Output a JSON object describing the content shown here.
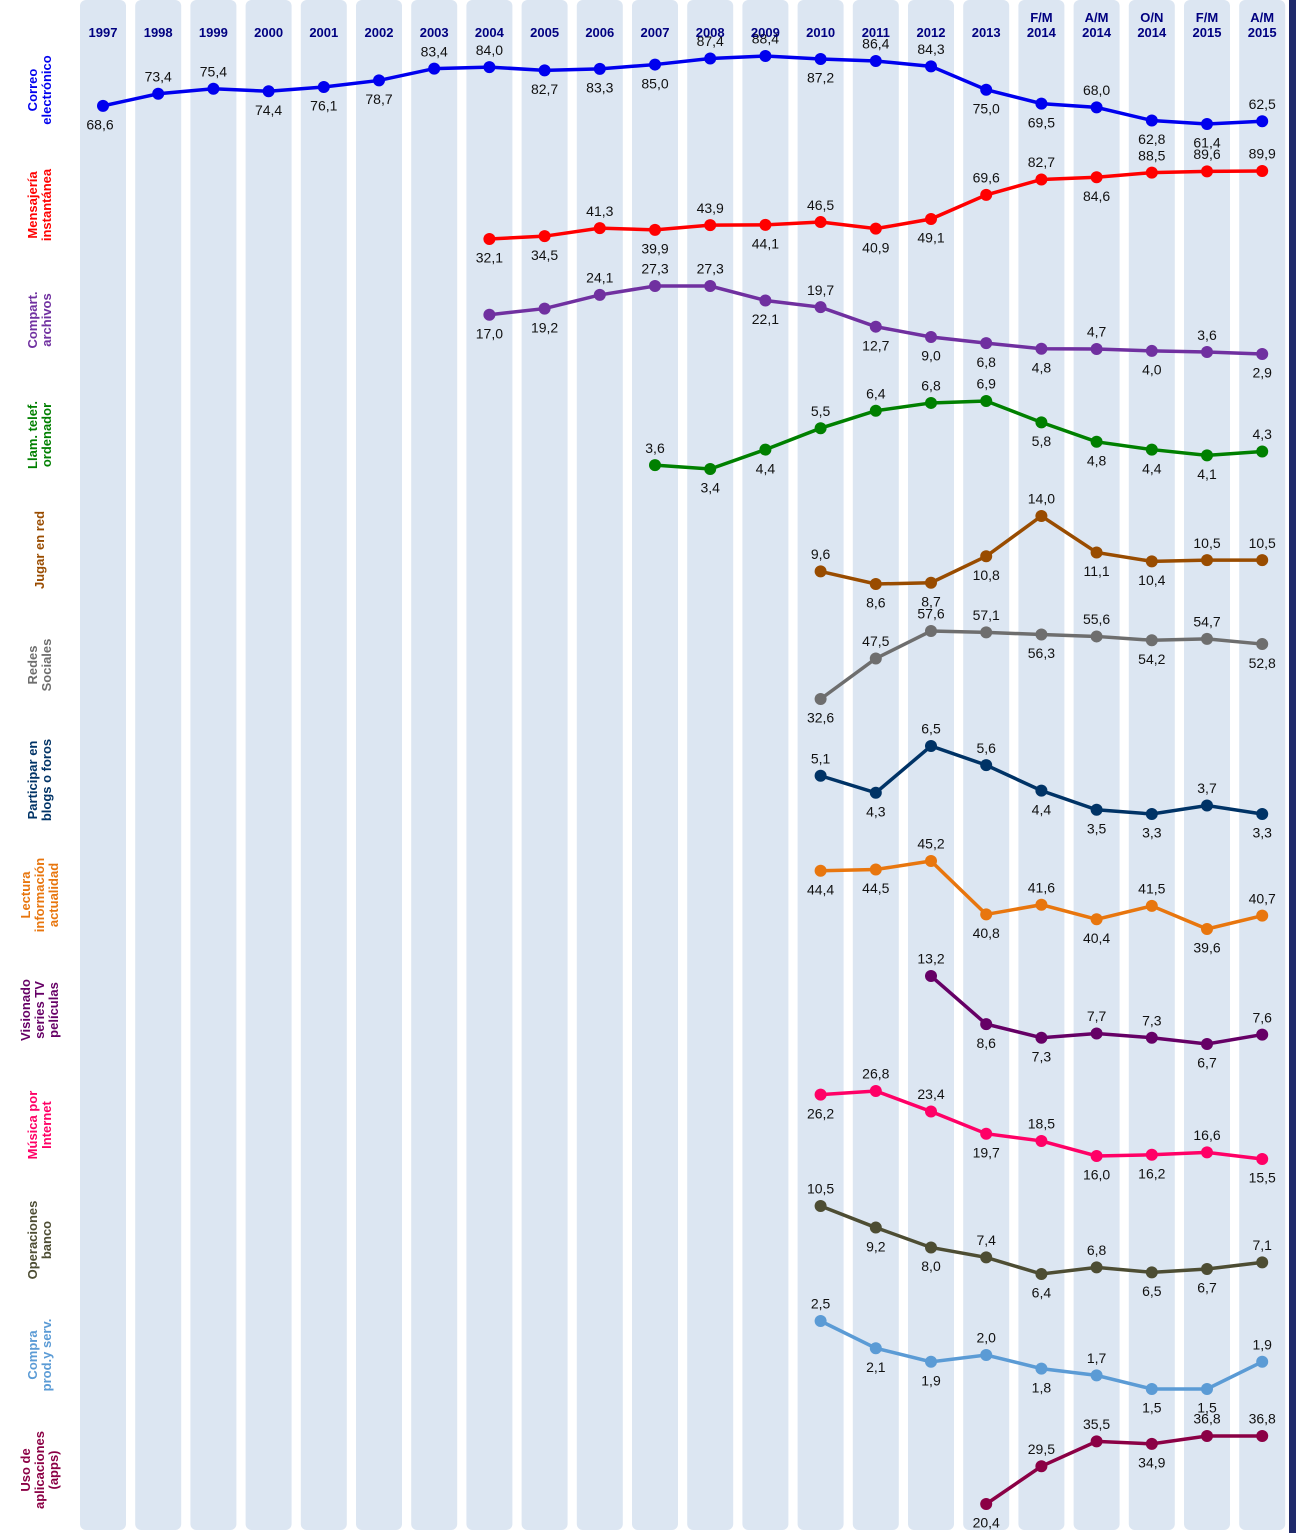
{
  "chart_data": {
    "type": "line",
    "categories": [
      "1997",
      "1998",
      "1999",
      "2000",
      "2001",
      "2002",
      "2003",
      "2004",
      "2005",
      "2006",
      "2007",
      "2008",
      "2009",
      "2010",
      "2011",
      "2012",
      "2013",
      "F/M 2014",
      "A/M 2014",
      "O/N 2014",
      "F/M 2015",
      "A/M 2015"
    ],
    "series": [
      {
        "name": "Correo electrónico",
        "color": "#0000ee",
        "values": [
          68.6,
          73.4,
          75.4,
          74.4,
          76.1,
          78.7,
          83.4,
          84.0,
          82.7,
          83.3,
          85.0,
          87.4,
          88.4,
          87.2,
          86.4,
          84.3,
          75.0,
          69.5,
          68.0,
          62.8,
          61.4,
          62.5
        ],
        "value_labels": [
          "68,6",
          "73,4",
          "75,4",
          "74,4",
          "76,1",
          "78,7",
          "83,4",
          "84,0",
          "82,7",
          "83,3",
          "85,0",
          "87,4",
          "88,4",
          "87,2",
          "86,4",
          "84,3",
          "75,0",
          "69,5",
          "68,0",
          "62,8",
          "61,4",
          "62,5"
        ]
      },
      {
        "name": "Mensajería instantánea",
        "color": "#ff0000",
        "values": [
          null,
          null,
          null,
          null,
          null,
          null,
          null,
          32.1,
          34.5,
          41.3,
          39.9,
          43.9,
          44.1,
          46.5,
          40.9,
          49.1,
          69.6,
          82.7,
          84.6,
          88.5,
          89.6,
          89.9
        ],
        "value_labels": [
          null,
          null,
          null,
          null,
          null,
          null,
          null,
          "32,1",
          "34,5",
          "41,3",
          "39,9",
          "43,9",
          "44,1",
          "46,5",
          "40,9",
          "49,1",
          "69,6",
          "82,7",
          "84,6",
          "88,5",
          "89,6",
          "89,9"
        ]
      },
      {
        "name": "Compart. archivos",
        "color": "#7030a0",
        "values": [
          null,
          null,
          null,
          null,
          null,
          null,
          null,
          17.0,
          19.2,
          24.1,
          27.3,
          27.3,
          22.1,
          19.7,
          12.7,
          9.0,
          6.8,
          4.8,
          4.7,
          4.0,
          3.6,
          2.9
        ],
        "value_labels": [
          null,
          null,
          null,
          null,
          null,
          null,
          null,
          "17,0",
          "19,2",
          "24,1",
          "27,3",
          "27,3",
          "22,1",
          "19,7",
          "12,7",
          "9,0",
          "6,8",
          "4,8",
          "4,7",
          "4,0",
          "3,6",
          "2,9"
        ]
      },
      {
        "name": "Llam. telef. ordenador",
        "color": "#008000",
        "values": [
          null,
          null,
          null,
          null,
          null,
          null,
          null,
          null,
          null,
          null,
          3.6,
          3.4,
          4.4,
          5.5,
          6.4,
          6.8,
          6.9,
          5.8,
          4.8,
          4.4,
          4.1,
          4.3
        ],
        "value_labels": [
          null,
          null,
          null,
          null,
          null,
          null,
          null,
          null,
          null,
          null,
          "3,6",
          "3,4",
          "4,4",
          "5,5",
          "6,4",
          "6,8",
          "6,9",
          "5,8",
          "4,8",
          "4,4",
          "4,1",
          "4,3"
        ]
      },
      {
        "name": "Jugar en red",
        "color": "#994c00",
        "values": [
          null,
          null,
          null,
          null,
          null,
          null,
          null,
          null,
          null,
          null,
          null,
          null,
          null,
          9.6,
          8.6,
          8.7,
          10.8,
          14.0,
          11.1,
          10.4,
          10.5,
          10.5
        ],
        "value_labels": [
          null,
          null,
          null,
          null,
          null,
          null,
          null,
          null,
          null,
          null,
          null,
          null,
          null,
          "9,6",
          "8,6",
          "8,7",
          "10,8",
          "14,0",
          "11,1",
          "10,4",
          "10,5",
          "10,5"
        ]
      },
      {
        "name": "Redes Sociales",
        "color": "#6e6e6e",
        "values": [
          null,
          null,
          null,
          null,
          null,
          null,
          null,
          null,
          null,
          null,
          null,
          null,
          null,
          32.6,
          47.5,
          57.6,
          57.1,
          56.3,
          55.6,
          54.2,
          54.7,
          52.8
        ],
        "value_labels": [
          null,
          null,
          null,
          null,
          null,
          null,
          null,
          null,
          null,
          null,
          null,
          null,
          null,
          "32,6",
          "47,5",
          "57,6",
          "57,1",
          "56,3",
          "55,6",
          "54,2",
          "54,7",
          "52,8"
        ]
      },
      {
        "name": "Participar en blogs o foros",
        "color": "#003366",
        "values": [
          null,
          null,
          null,
          null,
          null,
          null,
          null,
          null,
          null,
          null,
          null,
          null,
          null,
          5.1,
          4.3,
          6.5,
          5.6,
          4.4,
          3.5,
          3.3,
          3.7,
          3.3
        ],
        "value_labels": [
          null,
          null,
          null,
          null,
          null,
          null,
          null,
          null,
          null,
          null,
          null,
          null,
          null,
          "5,1",
          "4,3",
          "6,5",
          "5,6",
          "4,4",
          "3,5",
          "3,3",
          "3,7",
          "3,3"
        ]
      },
      {
        "name": "Lectura información actualidad",
        "color": "#e8760e",
        "values": [
          null,
          null,
          null,
          null,
          null,
          null,
          null,
          null,
          null,
          null,
          null,
          null,
          null,
          44.4,
          44.5,
          45.2,
          40.8,
          41.6,
          40.4,
          41.5,
          39.6,
          40.7
        ],
        "value_labels": [
          null,
          null,
          null,
          null,
          null,
          null,
          null,
          null,
          null,
          null,
          null,
          null,
          null,
          "44,4",
          "44,5",
          "45,2",
          "40,8",
          "41,6",
          "40,4",
          "41,5",
          "39,6",
          "40,7"
        ]
      },
      {
        "name": "Visionado series TV películas",
        "color": "#660066",
        "values": [
          null,
          null,
          null,
          null,
          null,
          null,
          null,
          null,
          null,
          null,
          null,
          null,
          null,
          null,
          null,
          13.2,
          8.6,
          7.3,
          7.7,
          7.3,
          6.7,
          7.6
        ],
        "value_labels": [
          null,
          null,
          null,
          null,
          null,
          null,
          null,
          null,
          null,
          null,
          null,
          null,
          null,
          null,
          null,
          "13,2",
          "8,6",
          "7,3",
          "7,7",
          "7,3",
          "6,7",
          "7,6"
        ]
      },
      {
        "name": "Música por Internet",
        "color": "#ff0066",
        "values": [
          null,
          null,
          null,
          null,
          null,
          null,
          null,
          null,
          null,
          null,
          null,
          null,
          null,
          26.2,
          26.8,
          23.4,
          19.7,
          18.5,
          16.0,
          16.2,
          16.6,
          15.5
        ],
        "value_labels": [
          null,
          null,
          null,
          null,
          null,
          null,
          null,
          null,
          null,
          null,
          null,
          null,
          null,
          "26,2",
          "26,8",
          "23,4",
          "19,7",
          "18,5",
          "16,0",
          "16,2",
          "16,6",
          "15,5"
        ]
      },
      {
        "name": "Operaciones banco",
        "color": "#4d4d33",
        "values": [
          null,
          null,
          null,
          null,
          null,
          null,
          null,
          null,
          null,
          null,
          null,
          null,
          null,
          10.5,
          9.2,
          8.0,
          7.4,
          6.4,
          6.8,
          6.5,
          6.7,
          7.1
        ],
        "value_labels": [
          null,
          null,
          null,
          null,
          null,
          null,
          null,
          null,
          null,
          null,
          null,
          null,
          null,
          "10,5",
          "9,2",
          "8,0",
          "7,4",
          "6,4",
          "6,8",
          "6,5",
          "6,7",
          "7,1"
        ]
      },
      {
        "name": "Compra prod.y serv.",
        "color": "#5b9bd5",
        "values": [
          null,
          null,
          null,
          null,
          null,
          null,
          null,
          null,
          null,
          null,
          null,
          null,
          null,
          2.5,
          2.1,
          1.9,
          2.0,
          1.8,
          1.7,
          1.5,
          1.5,
          1.9
        ],
        "value_labels": [
          null,
          null,
          null,
          null,
          null,
          null,
          null,
          null,
          null,
          null,
          null,
          null,
          null,
          "2,5",
          "2,1",
          "1,9",
          "2,0",
          "1,8",
          "1,7",
          "1,5",
          "1,5",
          "1,9"
        ]
      },
      {
        "name": "Uso de aplicaciones (apps)",
        "color": "#8b0045",
        "values": [
          null,
          null,
          null,
          null,
          null,
          null,
          null,
          null,
          null,
          null,
          null,
          null,
          null,
          null,
          null,
          null,
          20.4,
          29.5,
          35.5,
          34.9,
          36.8,
          36.8
        ],
        "value_labels": [
          null,
          null,
          null,
          null,
          null,
          null,
          null,
          null,
          null,
          null,
          null,
          null,
          null,
          null,
          null,
          null,
          "20,4",
          "29,5",
          "35,5",
          "34,9",
          "36,8",
          "36,8"
        ]
      }
    ]
  }
}
